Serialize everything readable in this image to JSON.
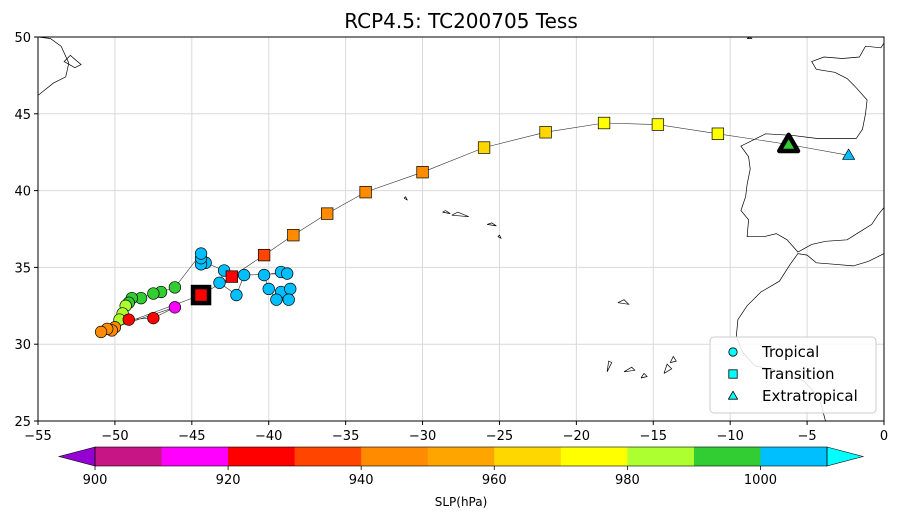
{
  "chart_data": {
    "type": "scatter",
    "title": "RCP4.5: TC200705 Tess",
    "xlim": [
      -55,
      0
    ],
    "ylim": [
      25,
      50
    ],
    "xticks": [
      -55,
      -50,
      -45,
      -40,
      -35,
      -30,
      -25,
      -20,
      -15,
      -10,
      -5,
      0
    ],
    "yticks": [
      25,
      30,
      35,
      40,
      45,
      50
    ],
    "xtick_labels": [
      "−55",
      "−50",
      "−45",
      "−40",
      "−35",
      "−30",
      "−25",
      "−20",
      "−15",
      "−10",
      "−5",
      "0"
    ],
    "ytick_labels": [
      "25",
      "30",
      "35",
      "40",
      "45",
      "50"
    ],
    "grid": true,
    "legend": {
      "placement": "lower-right",
      "entries": [
        {
          "marker": "circle",
          "label": "Tropical"
        },
        {
          "marker": "square",
          "label": "Transition"
        },
        {
          "marker": "triangle",
          "label": "Extratropical"
        }
      ]
    },
    "colorbar": {
      "label": "SLP(hPa)",
      "range": [
        895,
        1015
      ],
      "bins": [
        {
          "from": 895,
          "to": 900,
          "color": "#9400d3"
        },
        {
          "from": 900,
          "to": 910,
          "color": "#c71585"
        },
        {
          "from": 910,
          "to": 920,
          "color": "#ff00ff"
        },
        {
          "from": 920,
          "to": 930,
          "color": "#ff0000"
        },
        {
          "from": 930,
          "to": 940,
          "color": "#ff4500"
        },
        {
          "from": 940,
          "to": 950,
          "color": "#ff8c00"
        },
        {
          "from": 950,
          "to": 960,
          "color": "#ffa500"
        },
        {
          "from": 960,
          "to": 970,
          "color": "#ffd700"
        },
        {
          "from": 970,
          "to": 980,
          "color": "#ffff00"
        },
        {
          "from": 980,
          "to": 990,
          "color": "#adff2f"
        },
        {
          "from": 990,
          "to": 1000,
          "color": "#32cd32"
        },
        {
          "from": 1000,
          "to": 1010,
          "color": "#00bfff"
        },
        {
          "from": 1010,
          "to": 1015,
          "color": "#00ffff"
        }
      ],
      "ticks": [
        900,
        920,
        940,
        960,
        980,
        1000
      ],
      "tick_labels": [
        "900",
        "920",
        "940",
        "960",
        "980",
        "1000"
      ]
    },
    "track": [
      {
        "lon": -39.2,
        "lat": 33.4,
        "slp": 1003,
        "type": "tropical"
      },
      {
        "lon": -38.6,
        "lat": 33.6,
        "slp": 1003,
        "type": "tropical"
      },
      {
        "lon": -38.7,
        "lat": 32.9,
        "slp": 1003,
        "type": "tropical"
      },
      {
        "lon": -39.5,
        "lat": 32.9,
        "slp": 1003,
        "type": "tropical"
      },
      {
        "lon": -40.0,
        "lat": 33.6,
        "slp": 1003,
        "type": "tropical"
      },
      {
        "lon": -40.3,
        "lat": 34.5,
        "slp": 1003,
        "type": "tropical"
      },
      {
        "lon": -39.2,
        "lat": 34.7,
        "slp": 1003,
        "type": "tropical"
      },
      {
        "lon": -38.8,
        "lat": 34.6,
        "slp": 1003,
        "type": "tropical"
      },
      {
        "lon": -41.6,
        "lat": 34.5,
        "slp": 1003,
        "type": "tropical"
      },
      {
        "lon": -42.1,
        "lat": 33.2,
        "slp": 1003,
        "type": "tropical"
      },
      {
        "lon": -43.2,
        "lat": 34.0,
        "slp": 1003,
        "type": "tropical"
      },
      {
        "lon": -42.9,
        "lat": 34.8,
        "slp": 1003,
        "type": "tropical"
      },
      {
        "lon": -44.1,
        "lat": 35.3,
        "slp": 1003,
        "type": "tropical"
      },
      {
        "lon": -44.4,
        "lat": 35.2,
        "slp": 1003,
        "type": "tropical"
      },
      {
        "lon": -44.4,
        "lat": 35.6,
        "slp": 1003,
        "type": "tropical"
      },
      {
        "lon": -44.4,
        "lat": 35.9,
        "slp": 1003,
        "type": "tropical"
      },
      {
        "lon": -46.1,
        "lat": 33.7,
        "slp": 995,
        "type": "tropical"
      },
      {
        "lon": -47.0,
        "lat": 33.4,
        "slp": 995,
        "type": "tropical"
      },
      {
        "lon": -47.5,
        "lat": 33.3,
        "slp": 995,
        "type": "tropical"
      },
      {
        "lon": -48.3,
        "lat": 33.0,
        "slp": 995,
        "type": "tropical"
      },
      {
        "lon": -48.9,
        "lat": 33.0,
        "slp": 995,
        "type": "tropical"
      },
      {
        "lon": -49.1,
        "lat": 32.7,
        "slp": 995,
        "type": "tropical"
      },
      {
        "lon": -49.3,
        "lat": 32.5,
        "slp": 985,
        "type": "tropical"
      },
      {
        "lon": -49.5,
        "lat": 32.0,
        "slp": 985,
        "type": "tropical"
      },
      {
        "lon": -49.7,
        "lat": 31.6,
        "slp": 985,
        "type": "tropical"
      },
      {
        "lon": -49.1,
        "lat": 31.6,
        "slp": 925,
        "type": "tropical"
      },
      {
        "lon": -47.5,
        "lat": 31.7,
        "slp": 925,
        "type": "tropical"
      },
      {
        "lon": -46.1,
        "lat": 32.4,
        "slp": 915,
        "type": "tropical"
      },
      {
        "lon": -50.0,
        "lat": 31.1,
        "slp": 945,
        "type": "tropical"
      },
      {
        "lon": -50.2,
        "lat": 30.9,
        "slp": 945,
        "type": "tropical"
      },
      {
        "lon": -50.5,
        "lat": 31.0,
        "slp": 945,
        "type": "tropical"
      },
      {
        "lon": -50.9,
        "lat": 30.8,
        "slp": 945,
        "type": "tropical"
      },
      {
        "lon": -44.4,
        "lat": 33.2,
        "slp": 925,
        "type": "transition",
        "highlight": true
      },
      {
        "lon": -42.4,
        "lat": 34.4,
        "slp": 925,
        "type": "transition"
      },
      {
        "lon": -40.3,
        "lat": 35.8,
        "slp": 935,
        "type": "transition"
      },
      {
        "lon": -38.4,
        "lat": 37.1,
        "slp": 945,
        "type": "transition"
      },
      {
        "lon": -36.2,
        "lat": 38.5,
        "slp": 945,
        "type": "transition"
      },
      {
        "lon": -33.7,
        "lat": 39.9,
        "slp": 945,
        "type": "transition"
      },
      {
        "lon": -30.0,
        "lat": 41.2,
        "slp": 945,
        "type": "transition"
      },
      {
        "lon": -26.0,
        "lat": 42.8,
        "slp": 965,
        "type": "transition"
      },
      {
        "lon": -22.0,
        "lat": 43.8,
        "slp": 965,
        "type": "transition"
      },
      {
        "lon": -18.2,
        "lat": 44.4,
        "slp": 975,
        "type": "transition"
      },
      {
        "lon": -14.7,
        "lat": 44.3,
        "slp": 975,
        "type": "transition"
      },
      {
        "lon": -10.8,
        "lat": 43.7,
        "slp": 975,
        "type": "transition"
      },
      {
        "lon": -6.2,
        "lat": 43.0,
        "slp": 995,
        "type": "extratropical",
        "highlight": true
      },
      {
        "lon": -2.3,
        "lat": 42.3,
        "slp": 1003,
        "type": "extratropical"
      }
    ],
    "coastlines": [
      [
        [
          -3.8,
          25.0
        ],
        [
          -4.2,
          26.5
        ],
        [
          -5.2,
          27.6
        ],
        [
          -6.6,
          28.2
        ],
        [
          -8.4,
          28.6
        ],
        [
          -9.2,
          29.5
        ],
        [
          -9.6,
          30.5
        ],
        [
          -9.5,
          31.6
        ],
        [
          -8.9,
          32.5
        ],
        [
          -8.0,
          33.4
        ],
        [
          -6.8,
          34.1
        ],
        [
          -6.1,
          35.2
        ],
        [
          -5.6,
          35.9
        ],
        [
          -5.0,
          35.8
        ],
        [
          -4.4,
          35.3
        ],
        [
          -3.2,
          35.2
        ],
        [
          -2.0,
          35.1
        ],
        [
          -1.0,
          35.4
        ],
        [
          0.0,
          35.9
        ]
      ],
      [
        [
          0.0,
          38.9
        ],
        [
          -0.4,
          38.4
        ],
        [
          -0.8,
          37.8
        ],
        [
          -1.6,
          37.3
        ],
        [
          -2.4,
          36.8
        ],
        [
          -3.8,
          36.7
        ],
        [
          -4.7,
          36.5
        ],
        [
          -5.6,
          36.0
        ],
        [
          -6.3,
          36.8
        ],
        [
          -7.0,
          37.2
        ],
        [
          -7.8,
          37.0
        ],
        [
          -8.9,
          37.0
        ],
        [
          -8.8,
          38.1
        ],
        [
          -9.3,
          38.7
        ],
        [
          -9.0,
          39.6
        ],
        [
          -8.9,
          40.4
        ],
        [
          -8.7,
          41.4
        ],
        [
          -8.8,
          42.2
        ],
        [
          -9.3,
          42.9
        ],
        [
          -8.3,
          43.4
        ],
        [
          -7.7,
          43.7
        ],
        [
          -6.0,
          43.6
        ],
        [
          -4.4,
          43.4
        ],
        [
          -3.0,
          43.4
        ],
        [
          -1.8,
          43.4
        ],
        [
          -1.4,
          44.0
        ],
        [
          -1.2,
          45.0
        ],
        [
          -1.1,
          45.9
        ],
        [
          -1.9,
          46.8
        ],
        [
          -2.4,
          47.3
        ],
        [
          -3.2,
          47.7
        ],
        [
          -4.4,
          47.9
        ],
        [
          -4.7,
          48.4
        ],
        [
          -3.9,
          48.7
        ],
        [
          -2.7,
          48.6
        ],
        [
          -1.6,
          48.7
        ],
        [
          -1.2,
          49.4
        ],
        [
          -0.2,
          49.3
        ],
        [
          0.0,
          49.6
        ]
      ],
      [
        [
          -55.0,
          46.2
        ],
        [
          -54.0,
          47.0
        ],
        [
          -53.2,
          47.4
        ],
        [
          -53.0,
          48.3
        ],
        [
          -53.5,
          49.4
        ],
        [
          -54.2,
          49.9
        ],
        [
          -55.0,
          50.0
        ]
      ],
      [
        [
          -52.6,
          48.0
        ],
        [
          -52.2,
          48.2
        ],
        [
          -52.9,
          48.8
        ],
        [
          -53.3,
          48.4
        ],
        [
          -52.6,
          48.0
        ]
      ],
      [
        [
          -31.2,
          39.5
        ],
        [
          -31.0,
          39.4
        ],
        [
          -31.1,
          39.6
        ],
        [
          -31.2,
          39.5
        ]
      ],
      [
        [
          -28.7,
          38.6
        ],
        [
          -28.2,
          38.5
        ],
        [
          -28.5,
          38.7
        ],
        [
          -28.7,
          38.6
        ]
      ],
      [
        [
          -28.1,
          38.4
        ],
        [
          -27.0,
          38.3
        ],
        [
          -27.7,
          38.6
        ],
        [
          -28.1,
          38.4
        ]
      ],
      [
        [
          -25.8,
          37.8
        ],
        [
          -25.2,
          37.7
        ],
        [
          -25.5,
          37.9
        ],
        [
          -25.8,
          37.8
        ]
      ],
      [
        [
          -25.1,
          37.0
        ],
        [
          -24.9,
          36.9
        ],
        [
          -25.0,
          37.1
        ],
        [
          -25.1,
          37.0
        ]
      ],
      [
        [
          -17.3,
          32.7
        ],
        [
          -16.6,
          32.6
        ],
        [
          -16.9,
          32.9
        ],
        [
          -17.3,
          32.7
        ]
      ],
      [
        [
          -18.0,
          28.2
        ],
        [
          -17.7,
          28.8
        ],
        [
          -17.9,
          28.9
        ],
        [
          -18.0,
          28.2
        ]
      ],
      [
        [
          -16.9,
          28.2
        ],
        [
          -16.2,
          28.3
        ],
        [
          -16.4,
          28.5
        ],
        [
          -16.9,
          28.2
        ]
      ],
      [
        [
          -15.8,
          27.8
        ],
        [
          -15.4,
          27.9
        ],
        [
          -15.6,
          28.1
        ],
        [
          -15.8,
          27.8
        ]
      ],
      [
        [
          -14.3,
          28.1
        ],
        [
          -13.8,
          28.4
        ],
        [
          -14.1,
          28.7
        ],
        [
          -14.3,
          28.1
        ]
      ],
      [
        [
          -13.9,
          28.8
        ],
        [
          -13.5,
          28.9
        ],
        [
          -13.7,
          29.2
        ],
        [
          -13.9,
          28.8
        ]
      ],
      [
        [
          -8.9,
          49.9
        ],
        [
          -8.6,
          49.9
        ],
        [
          -8.7,
          50.0
        ],
        [
          -8.9,
          49.9
        ]
      ]
    ]
  }
}
